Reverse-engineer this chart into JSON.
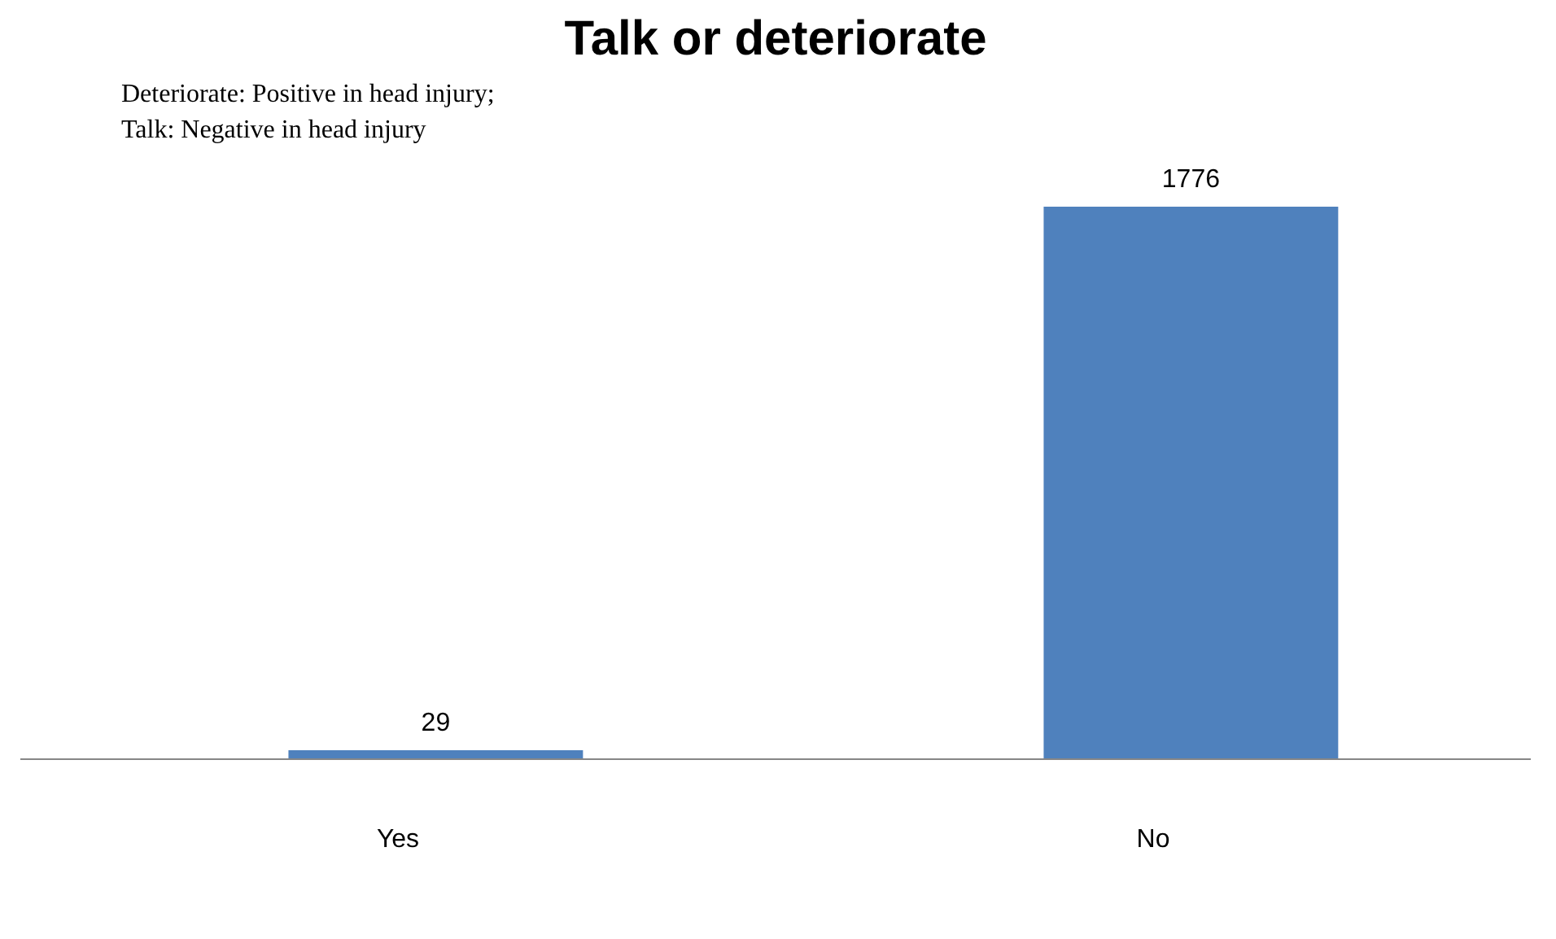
{
  "chart_data": {
    "type": "bar",
    "title": "Talk or deteriorate",
    "categories": [
      "Yes",
      "No"
    ],
    "values": [
      29,
      1776
    ],
    "color": "#4f81bd",
    "data_labels": true,
    "grid": false,
    "annotations": [
      "Deteriorate:    Positive    in    head    injury;",
      "Talk:                Negative in head injury"
    ]
  }
}
